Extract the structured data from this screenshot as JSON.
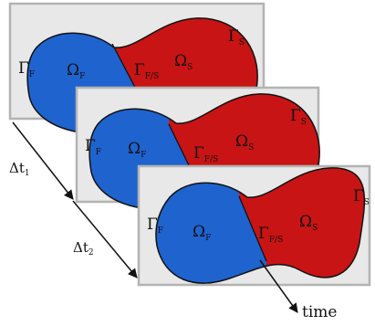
{
  "colors": {
    "fluid": "#1f63cf",
    "solid": "#c81414",
    "panel_fill": "#e8e8e8",
    "panel_border": "#b3b3b3",
    "outline": "#111111"
  },
  "panels": [
    {
      "gamma_f": "Γ",
      "gamma_f_sub": "F",
      "omega_f": "Ω",
      "omega_f_sub": "F",
      "gamma_fs": "Γ",
      "gamma_fs_sub": "F/S",
      "omega_s": "Ω",
      "omega_s_sub": "S",
      "gamma_s": "Γ",
      "gamma_s_sub": "S"
    },
    {
      "gamma_f": "Γ",
      "gamma_f_sub": "F",
      "omega_f": "Ω",
      "omega_f_sub": "F",
      "gamma_fs": "Γ",
      "gamma_fs_sub": "F/S",
      "omega_s": "Ω",
      "omega_s_sub": "S",
      "gamma_s": "Γ",
      "gamma_s_sub": "S"
    },
    {
      "gamma_f": "Γ",
      "gamma_f_sub": "F",
      "omega_f": "Ω",
      "omega_f_sub": "F",
      "gamma_fs": "Γ",
      "gamma_fs_sub": "F/S",
      "omega_s": "Ω",
      "omega_s_sub": "S",
      "gamma_s": "Γ",
      "gamma_s_sub": "S"
    }
  ],
  "time_steps": [
    {
      "main": "Δt",
      "sub": "1"
    },
    {
      "main": "Δt",
      "sub": "2"
    }
  ],
  "time_label": "time"
}
